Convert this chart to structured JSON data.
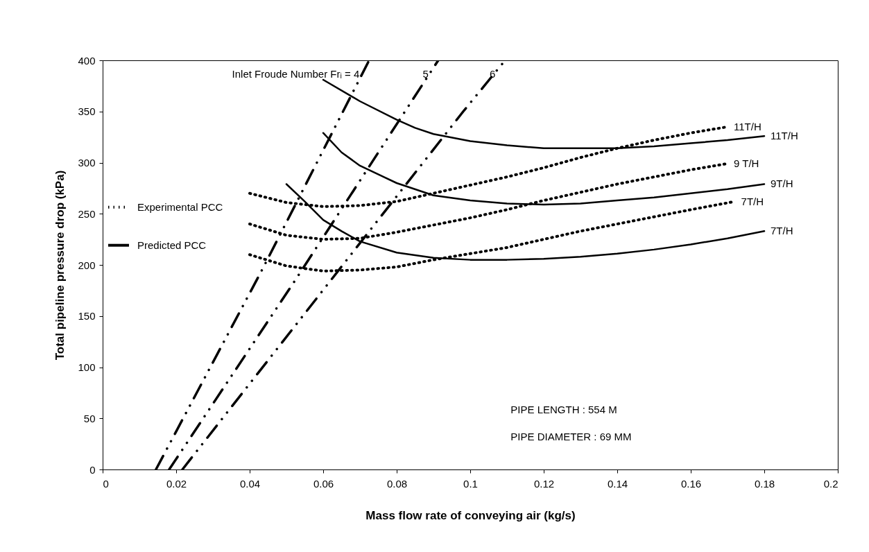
{
  "chart_data": {
    "type": "line",
    "xlabel": "Mass flow rate of conveying air (kg/s)",
    "ylabel": "Total pipeline pressure drop (kPa)",
    "xlim": [
      0,
      0.2
    ],
    "xticks": [
      0,
      0.02,
      0.04,
      0.06,
      0.08,
      0.1,
      0.12,
      0.14,
      0.16,
      0.18,
      0.2
    ],
    "ylim": [
      0,
      400
    ],
    "yticks": [
      0,
      50,
      100,
      150,
      200,
      250,
      300,
      350,
      400
    ],
    "grid": false,
    "legend": "left",
    "series": [
      {
        "name": "Experimental PCC",
        "color": "#000000",
        "line_style": "dotted",
        "x": [
          0.04,
          0.05,
          0.06,
          0.07,
          0.08,
          0.09,
          0.1,
          0.11,
          0.12,
          0.13,
          0.14,
          0.15,
          0.16,
          0.17
        ],
        "values": [
          270,
          261,
          257,
          258,
          262,
          270,
          278,
          286,
          295,
          305,
          314,
          322,
          329,
          335
        ]
      },
      {
        "color": "#000000",
        "line_style": "dotted",
        "x": [
          0.04,
          0.05,
          0.06,
          0.07,
          0.08,
          0.09,
          0.1,
          0.11,
          0.12,
          0.13,
          0.14,
          0.15,
          0.16,
          0.17
        ],
        "values": [
          240,
          229,
          225,
          226,
          232,
          239,
          246,
          254,
          263,
          271,
          279,
          286,
          293,
          299
        ]
      },
      {
        "color": "#000000",
        "line_style": "dotted",
        "x": [
          0.04,
          0.05,
          0.06,
          0.07,
          0.08,
          0.09,
          0.1,
          0.11,
          0.12,
          0.13,
          0.14,
          0.15,
          0.16,
          0.172
        ],
        "values": [
          210,
          199,
          194,
          195,
          198,
          205,
          211,
          217,
          225,
          233,
          240,
          247,
          254,
          262
        ]
      },
      {
        "name": "Predicted PCC",
        "color": "#000000",
        "line_style": "solid",
        "x": [
          0.06,
          0.07,
          0.08,
          0.085,
          0.09,
          0.1,
          0.11,
          0.12,
          0.13,
          0.14,
          0.15,
          0.16,
          0.17,
          0.18
        ],
        "values": [
          381,
          360,
          342,
          334,
          328,
          321,
          317,
          314,
          314,
          314,
          316,
          319,
          322,
          326
        ]
      },
      {
        "color": "#000000",
        "line_style": "solid",
        "x": [
          0.06,
          0.065,
          0.07,
          0.08,
          0.09,
          0.1,
          0.11,
          0.12,
          0.13,
          0.14,
          0.15,
          0.16,
          0.17,
          0.18
        ],
        "values": [
          329,
          310,
          297,
          280,
          268,
          263,
          260,
          259,
          260,
          263,
          266,
          270,
          274,
          279
        ]
      },
      {
        "color": "#000000",
        "line_style": "solid",
        "x": [
          0.05,
          0.055,
          0.06,
          0.065,
          0.07,
          0.08,
          0.09,
          0.1,
          0.11,
          0.12,
          0.13,
          0.14,
          0.15,
          0.16,
          0.17,
          0.18
        ],
        "values": [
          279,
          262,
          244,
          233,
          223,
          212,
          207,
          205,
          205,
          206,
          208,
          211,
          215,
          220,
          226,
          233
        ]
      },
      {
        "color": "#000000",
        "line_style": "dashed",
        "x": [
          0.0145,
          0.0435,
          0.0725
        ],
        "values": [
          0,
          196,
          400
        ]
      },
      {
        "color": "#000000",
        "line_style": "dashed",
        "x": [
          0.0181,
          0.0522,
          0.0913
        ],
        "values": [
          0,
          184,
          400
        ]
      },
      {
        "color": "#000000",
        "line_style": "dashed",
        "x": [
          0.0217,
          0.0981,
          0.1095
        ],
        "values": [
          0,
          350,
          400
        ]
      }
    ],
    "annotations": [
      {
        "text": "11T/H",
        "x": 0.17,
        "y": 335
      },
      {
        "text": "11T/H",
        "x": 0.18,
        "y": 326
      },
      {
        "text": "9 T/H",
        "x": 0.17,
        "y": 299
      },
      {
        "text": "9T/H",
        "x": 0.18,
        "y": 279
      },
      {
        "text": "7T/H",
        "x": 0.172,
        "y": 262
      },
      {
        "text": "7T/H",
        "x": 0.18,
        "y": 233
      },
      {
        "text": "Inlet Froude Number Frᵢ = 4",
        "x": 0.0725,
        "y": 400
      },
      {
        "text": "5",
        "x": 0.0913,
        "y": 400
      },
      {
        "text": "6",
        "x": 0.1095,
        "y": 400
      },
      "PIPE LENGTH    : 554 M",
      "PIPE DIAMETER : 69 MM"
    ]
  }
}
